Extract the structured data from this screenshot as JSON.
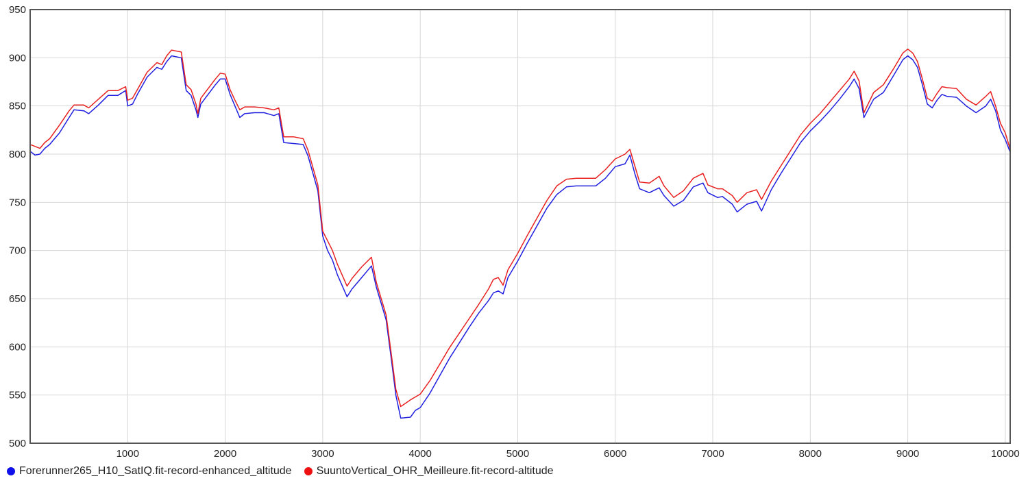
{
  "chart_data": {
    "type": "line",
    "title": "",
    "xlabel": "",
    "ylabel": "",
    "xlim": [
      0,
      10050
    ],
    "ylim": [
      500,
      950
    ],
    "x_ticks": [
      1000,
      2000,
      3000,
      4000,
      5000,
      6000,
      7000,
      8000,
      9000,
      10000
    ],
    "y_ticks": [
      500,
      550,
      600,
      650,
      700,
      750,
      800,
      850,
      900,
      950
    ],
    "grid": true,
    "legend_position": "bottom-left",
    "series": [
      {
        "name": "Forerunner265_H10_SatIQ.fit-record-enhanced_altitude",
        "color": "#1f1fe0",
        "points": [
          [
            0,
            803
          ],
          [
            50,
            799
          ],
          [
            100,
            800
          ],
          [
            150,
            806
          ],
          [
            200,
            810
          ],
          [
            300,
            822
          ],
          [
            400,
            838
          ],
          [
            450,
            846
          ],
          [
            550,
            845
          ],
          [
            600,
            842
          ],
          [
            700,
            851
          ],
          [
            800,
            861
          ],
          [
            900,
            861
          ],
          [
            980,
            866
          ],
          [
            1000,
            850
          ],
          [
            1050,
            852
          ],
          [
            1100,
            862
          ],
          [
            1200,
            880
          ],
          [
            1300,
            890
          ],
          [
            1350,
            888
          ],
          [
            1400,
            896
          ],
          [
            1450,
            902
          ],
          [
            1550,
            900
          ],
          [
            1600,
            866
          ],
          [
            1650,
            861
          ],
          [
            1700,
            846
          ],
          [
            1720,
            838
          ],
          [
            1750,
            852
          ],
          [
            1900,
            872
          ],
          [
            1950,
            878
          ],
          [
            2000,
            878
          ],
          [
            2050,
            862
          ],
          [
            2100,
            850
          ],
          [
            2150,
            838
          ],
          [
            2200,
            842
          ],
          [
            2300,
            843
          ],
          [
            2400,
            843
          ],
          [
            2500,
            840
          ],
          [
            2550,
            842
          ],
          [
            2600,
            812
          ],
          [
            2700,
            811
          ],
          [
            2800,
            810
          ],
          [
            2850,
            798
          ],
          [
            2950,
            762
          ],
          [
            3000,
            715
          ],
          [
            3050,
            700
          ],
          [
            3100,
            690
          ],
          [
            3150,
            675
          ],
          [
            3250,
            652
          ],
          [
            3300,
            660
          ],
          [
            3400,
            672
          ],
          [
            3500,
            684
          ],
          [
            3550,
            662
          ],
          [
            3650,
            628
          ],
          [
            3700,
            590
          ],
          [
            3750,
            550
          ],
          [
            3800,
            526
          ],
          [
            3900,
            527
          ],
          [
            3950,
            534
          ],
          [
            4000,
            537
          ],
          [
            4100,
            552
          ],
          [
            4200,
            570
          ],
          [
            4300,
            588
          ],
          [
            4400,
            604
          ],
          [
            4500,
            620
          ],
          [
            4600,
            635
          ],
          [
            4700,
            648
          ],
          [
            4750,
            656
          ],
          [
            4800,
            658
          ],
          [
            4850,
            655
          ],
          [
            4900,
            672
          ],
          [
            5000,
            689
          ],
          [
            5100,
            708
          ],
          [
            5200,
            726
          ],
          [
            5300,
            744
          ],
          [
            5400,
            758
          ],
          [
            5500,
            766
          ],
          [
            5600,
            767
          ],
          [
            5700,
            767
          ],
          [
            5800,
            767
          ],
          [
            5900,
            775
          ],
          [
            6000,
            787
          ],
          [
            6100,
            790
          ],
          [
            6150,
            799
          ],
          [
            6200,
            780
          ],
          [
            6250,
            764
          ],
          [
            6350,
            760
          ],
          [
            6450,
            765
          ],
          [
            6500,
            757
          ],
          [
            6600,
            746
          ],
          [
            6700,
            752
          ],
          [
            6800,
            766
          ],
          [
            6900,
            770
          ],
          [
            6950,
            760
          ],
          [
            7050,
            755
          ],
          [
            7100,
            756
          ],
          [
            7200,
            748
          ],
          [
            7250,
            740
          ],
          [
            7350,
            748
          ],
          [
            7450,
            751
          ],
          [
            7500,
            741
          ],
          [
            7600,
            763
          ],
          [
            7700,
            780
          ],
          [
            7800,
            796
          ],
          [
            7900,
            812
          ],
          [
            8000,
            824
          ],
          [
            8100,
            834
          ],
          [
            8200,
            845
          ],
          [
            8300,
            857
          ],
          [
            8400,
            870
          ],
          [
            8450,
            878
          ],
          [
            8500,
            868
          ],
          [
            8550,
            838
          ],
          [
            8650,
            857
          ],
          [
            8750,
            864
          ],
          [
            8850,
            881
          ],
          [
            8950,
            898
          ],
          [
            9000,
            902
          ],
          [
            9050,
            898
          ],
          [
            9100,
            890
          ],
          [
            9150,
            872
          ],
          [
            9200,
            852
          ],
          [
            9250,
            848
          ],
          [
            9300,
            856
          ],
          [
            9350,
            862
          ],
          [
            9400,
            860
          ],
          [
            9500,
            859
          ],
          [
            9600,
            850
          ],
          [
            9700,
            843
          ],
          [
            9800,
            850
          ],
          [
            9850,
            857
          ],
          [
            9900,
            845
          ],
          [
            9950,
            825
          ],
          [
            10000,
            815
          ],
          [
            10050,
            802
          ]
        ]
      },
      {
        "name": "SuuntoVertical_OHR_Meilleure.fit-record-altitude",
        "color": "#e82020",
        "points": [
          [
            0,
            810
          ],
          [
            50,
            808
          ],
          [
            100,
            806
          ],
          [
            150,
            812
          ],
          [
            200,
            816
          ],
          [
            300,
            830
          ],
          [
            400,
            845
          ],
          [
            450,
            851
          ],
          [
            550,
            851
          ],
          [
            600,
            848
          ],
          [
            700,
            857
          ],
          [
            800,
            866
          ],
          [
            900,
            866
          ],
          [
            980,
            870
          ],
          [
            1000,
            856
          ],
          [
            1050,
            858
          ],
          [
            1100,
            867
          ],
          [
            1200,
            885
          ],
          [
            1300,
            895
          ],
          [
            1350,
            893
          ],
          [
            1400,
            902
          ],
          [
            1450,
            908
          ],
          [
            1550,
            906
          ],
          [
            1600,
            872
          ],
          [
            1650,
            867
          ],
          [
            1700,
            852
          ],
          [
            1720,
            842
          ],
          [
            1750,
            858
          ],
          [
            1900,
            878
          ],
          [
            1950,
            884
          ],
          [
            2000,
            883
          ],
          [
            2050,
            867
          ],
          [
            2100,
            856
          ],
          [
            2150,
            846
          ],
          [
            2200,
            849
          ],
          [
            2300,
            849
          ],
          [
            2400,
            848
          ],
          [
            2500,
            846
          ],
          [
            2550,
            848
          ],
          [
            2600,
            818
          ],
          [
            2700,
            818
          ],
          [
            2800,
            816
          ],
          [
            2850,
            804
          ],
          [
            2950,
            768
          ],
          [
            3000,
            720
          ],
          [
            3050,
            710
          ],
          [
            3100,
            700
          ],
          [
            3150,
            686
          ],
          [
            3250,
            663
          ],
          [
            3300,
            671
          ],
          [
            3400,
            683
          ],
          [
            3500,
            693
          ],
          [
            3550,
            667
          ],
          [
            3650,
            633
          ],
          [
            3700,
            595
          ],
          [
            3750,
            556
          ],
          [
            3800,
            538
          ],
          [
            3900,
            545
          ],
          [
            3950,
            548
          ],
          [
            4000,
            551
          ],
          [
            4100,
            565
          ],
          [
            4200,
            582
          ],
          [
            4300,
            599
          ],
          [
            4400,
            614
          ],
          [
            4500,
            629
          ],
          [
            4600,
            644
          ],
          [
            4700,
            660
          ],
          [
            4750,
            670
          ],
          [
            4800,
            672
          ],
          [
            4850,
            664
          ],
          [
            4900,
            680
          ],
          [
            5000,
            697
          ],
          [
            5100,
            716
          ],
          [
            5200,
            734
          ],
          [
            5300,
            752
          ],
          [
            5400,
            767
          ],
          [
            5500,
            774
          ],
          [
            5600,
            775
          ],
          [
            5700,
            775
          ],
          [
            5800,
            775
          ],
          [
            5900,
            784
          ],
          [
            6000,
            795
          ],
          [
            6100,
            800
          ],
          [
            6150,
            805
          ],
          [
            6200,
            788
          ],
          [
            6250,
            771
          ],
          [
            6350,
            770
          ],
          [
            6450,
            777
          ],
          [
            6500,
            767
          ],
          [
            6600,
            755
          ],
          [
            6700,
            762
          ],
          [
            6800,
            775
          ],
          [
            6900,
            780
          ],
          [
            6950,
            768
          ],
          [
            7050,
            764
          ],
          [
            7100,
            764
          ],
          [
            7200,
            757
          ],
          [
            7250,
            750
          ],
          [
            7350,
            760
          ],
          [
            7450,
            763
          ],
          [
            7500,
            753
          ],
          [
            7600,
            772
          ],
          [
            7700,
            788
          ],
          [
            7800,
            804
          ],
          [
            7900,
            820
          ],
          [
            8000,
            832
          ],
          [
            8100,
            842
          ],
          [
            8200,
            854
          ],
          [
            8300,
            866
          ],
          [
            8400,
            878
          ],
          [
            8450,
            886
          ],
          [
            8500,
            876
          ],
          [
            8550,
            843
          ],
          [
            8650,
            864
          ],
          [
            8750,
            872
          ],
          [
            8850,
            888
          ],
          [
            8950,
            905
          ],
          [
            9000,
            909
          ],
          [
            9050,
            905
          ],
          [
            9100,
            896
          ],
          [
            9150,
            878
          ],
          [
            9200,
            858
          ],
          [
            9250,
            855
          ],
          [
            9300,
            863
          ],
          [
            9350,
            870
          ],
          [
            9400,
            869
          ],
          [
            9500,
            868
          ],
          [
            9600,
            857
          ],
          [
            9700,
            851
          ],
          [
            9800,
            860
          ],
          [
            9850,
            865
          ],
          [
            9900,
            850
          ],
          [
            9950,
            832
          ],
          [
            10000,
            822
          ],
          [
            10050,
            805
          ]
        ]
      }
    ]
  }
}
